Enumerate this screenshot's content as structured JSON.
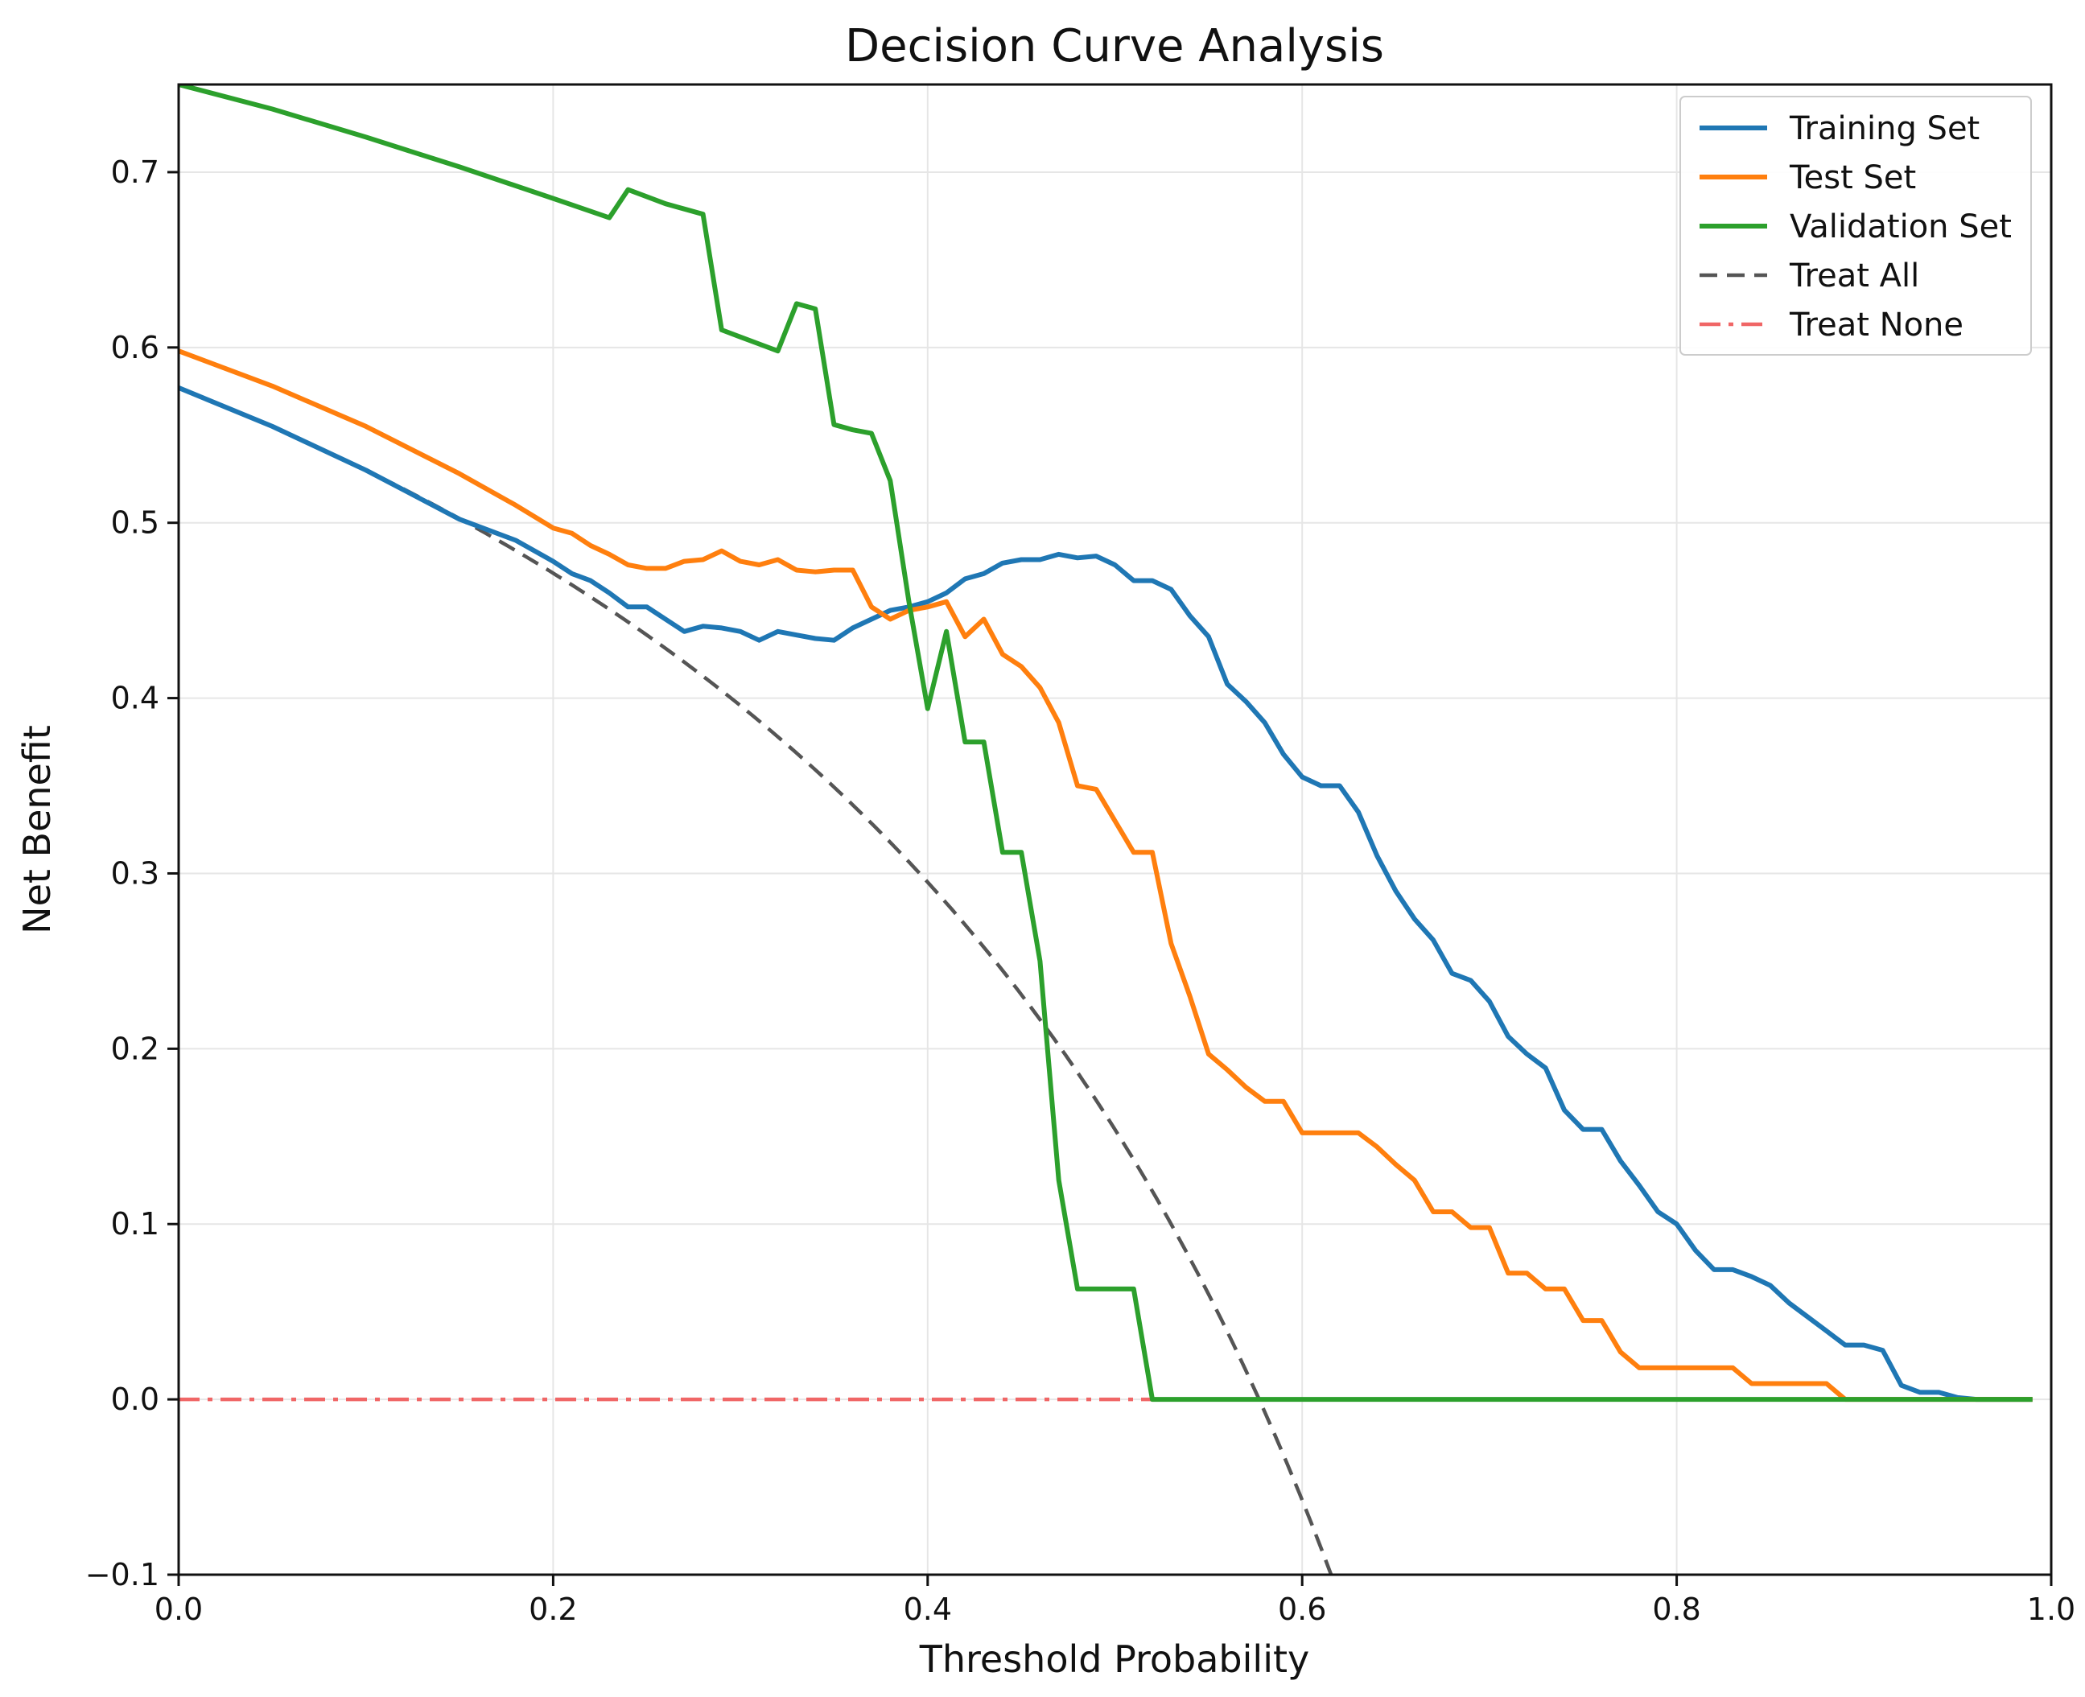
{
  "chart_data": {
    "type": "line",
    "title": "Decision Curve Analysis",
    "xlabel": "Threshold Probability",
    "ylabel": "Net Benefit",
    "xlim": [
      0.0,
      1.0
    ],
    "ylim": [
      -0.1,
      0.75
    ],
    "grid": true,
    "legend_position": "top-right",
    "x_ticks": [
      0.0,
      0.2,
      0.4,
      0.6,
      0.8,
      1.0
    ],
    "x_tick_labels": [
      "0.0",
      "0.2",
      "0.4",
      "0.6",
      "0.8",
      "1.0"
    ],
    "y_ticks": [
      -0.1,
      0.0,
      0.1,
      0.2,
      0.3,
      0.4,
      0.5,
      0.6,
      0.7
    ],
    "y_tick_labels": [
      "−0.1",
      "0.0",
      "0.1",
      "0.2",
      "0.3",
      "0.4",
      "0.5",
      "0.6",
      "0.7"
    ],
    "series": [
      {
        "name": "Training Set",
        "color": "#1f77b4",
        "style": "solid",
        "x": [
          0.0,
          0.05,
          0.1,
          0.15,
          0.18,
          0.2,
          0.21,
          0.22,
          0.23,
          0.24,
          0.25,
          0.26,
          0.27,
          0.28,
          0.29,
          0.3,
          0.31,
          0.32,
          0.33,
          0.34,
          0.35,
          0.36,
          0.37,
          0.38,
          0.39,
          0.4,
          0.41,
          0.42,
          0.43,
          0.44,
          0.45,
          0.46,
          0.47,
          0.48,
          0.49,
          0.5,
          0.51,
          0.52,
          0.53,
          0.54,
          0.55,
          0.56,
          0.57,
          0.58,
          0.59,
          0.6,
          0.61,
          0.62,
          0.63,
          0.64,
          0.65,
          0.66,
          0.67,
          0.68,
          0.69,
          0.7,
          0.71,
          0.72,
          0.73,
          0.74,
          0.75,
          0.76,
          0.77,
          0.78,
          0.79,
          0.8,
          0.81,
          0.82,
          0.83,
          0.84,
          0.85,
          0.86,
          0.87,
          0.88,
          0.89,
          0.9,
          0.91,
          0.92,
          0.93,
          0.94,
          0.95,
          0.96,
          0.97,
          0.98,
          0.99
        ],
        "y": [
          0.577,
          0.555,
          0.53,
          0.502,
          0.49,
          0.478,
          0.471,
          0.467,
          0.46,
          0.452,
          0.452,
          0.445,
          0.438,
          0.441,
          0.44,
          0.438,
          0.433,
          0.438,
          0.436,
          0.434,
          0.433,
          0.44,
          0.445,
          0.45,
          0.452,
          0.455,
          0.46,
          0.468,
          0.471,
          0.477,
          0.479,
          0.479,
          0.482,
          0.48,
          0.481,
          0.476,
          0.467,
          0.467,
          0.462,
          0.447,
          0.435,
          0.408,
          0.398,
          0.386,
          0.368,
          0.355,
          0.35,
          0.35,
          0.335,
          0.31,
          0.29,
          0.274,
          0.262,
          0.243,
          0.239,
          0.227,
          0.207,
          0.197,
          0.189,
          0.165,
          0.154,
          0.154,
          0.136,
          0.122,
          0.107,
          0.1,
          0.085,
          0.074,
          0.074,
          0.07,
          0.065,
          0.055,
          0.047,
          0.039,
          0.031,
          0.031,
          0.028,
          0.008,
          0.004,
          0.004,
          0.001,
          0.0,
          0.0,
          0.0,
          0.0
        ]
      },
      {
        "name": "Test Set",
        "color": "#ff7f0e",
        "style": "solid",
        "x": [
          0.0,
          0.05,
          0.1,
          0.15,
          0.18,
          0.2,
          0.21,
          0.22,
          0.23,
          0.24,
          0.25,
          0.26,
          0.27,
          0.28,
          0.29,
          0.3,
          0.31,
          0.32,
          0.33,
          0.34,
          0.35,
          0.36,
          0.37,
          0.38,
          0.39,
          0.4,
          0.41,
          0.42,
          0.43,
          0.44,
          0.45,
          0.46,
          0.47,
          0.48,
          0.49,
          0.5,
          0.51,
          0.52,
          0.53,
          0.54,
          0.55,
          0.56,
          0.57,
          0.58,
          0.59,
          0.6,
          0.61,
          0.62,
          0.63,
          0.64,
          0.65,
          0.66,
          0.67,
          0.68,
          0.69,
          0.7,
          0.71,
          0.72,
          0.73,
          0.74,
          0.75,
          0.76,
          0.77,
          0.78,
          0.79,
          0.8,
          0.81,
          0.82,
          0.83,
          0.84,
          0.85,
          0.86,
          0.87,
          0.88,
          0.89,
          0.9,
          0.92,
          0.94,
          0.96,
          0.98,
          0.99
        ],
        "y": [
          0.598,
          0.578,
          0.555,
          0.528,
          0.51,
          0.497,
          0.494,
          0.487,
          0.482,
          0.476,
          0.474,
          0.474,
          0.478,
          0.479,
          0.484,
          0.478,
          0.476,
          0.479,
          0.473,
          0.472,
          0.473,
          0.473,
          0.452,
          0.445,
          0.45,
          0.452,
          0.455,
          0.435,
          0.445,
          0.425,
          0.418,
          0.406,
          0.386,
          0.35,
          0.348,
          0.33,
          0.312,
          0.312,
          0.26,
          0.23,
          0.197,
          0.188,
          0.178,
          0.17,
          0.17,
          0.152,
          0.152,
          0.152,
          0.152,
          0.144,
          0.134,
          0.125,
          0.107,
          0.107,
          0.098,
          0.098,
          0.072,
          0.072,
          0.063,
          0.063,
          0.045,
          0.045,
          0.027,
          0.018,
          0.018,
          0.018,
          0.018,
          0.018,
          0.018,
          0.009,
          0.009,
          0.009,
          0.009,
          0.009,
          0.0,
          0.0,
          0.0,
          0.0,
          0.0,
          0.0,
          0.0
        ]
      },
      {
        "name": "Validation Set",
        "color": "#2ca02c",
        "style": "solid",
        "x": [
          0.0,
          0.05,
          0.1,
          0.15,
          0.2,
          0.23,
          0.24,
          0.25,
          0.26,
          0.27,
          0.28,
          0.29,
          0.3,
          0.31,
          0.32,
          0.33,
          0.34,
          0.35,
          0.36,
          0.37,
          0.38,
          0.39,
          0.4,
          0.41,
          0.42,
          0.43,
          0.44,
          0.45,
          0.46,
          0.47,
          0.48,
          0.49,
          0.5,
          0.51,
          0.52,
          0.53,
          0.6,
          0.7,
          0.8,
          0.9,
          0.99
        ],
        "y": [
          0.75,
          0.736,
          0.72,
          0.703,
          0.685,
          0.674,
          0.69,
          0.686,
          0.682,
          0.679,
          0.676,
          0.61,
          0.606,
          0.602,
          0.598,
          0.625,
          0.622,
          0.556,
          0.553,
          0.551,
          0.524,
          0.455,
          0.394,
          0.438,
          0.375,
          0.375,
          0.312,
          0.312,
          0.25,
          0.125,
          0.063,
          0.063,
          0.063,
          0.063,
          0.0,
          0.0,
          0.0,
          0.0,
          0.0,
          0.0,
          0.0
        ]
      },
      {
        "name": "Treat All",
        "color": "#555555",
        "style": "dashed",
        "prevalence": 0.577
      },
      {
        "name": "Treat None",
        "color": "#f06666",
        "style": "dashdot",
        "x": [
          0.0,
          0.99
        ],
        "y": [
          0.0,
          0.0
        ]
      }
    ]
  }
}
